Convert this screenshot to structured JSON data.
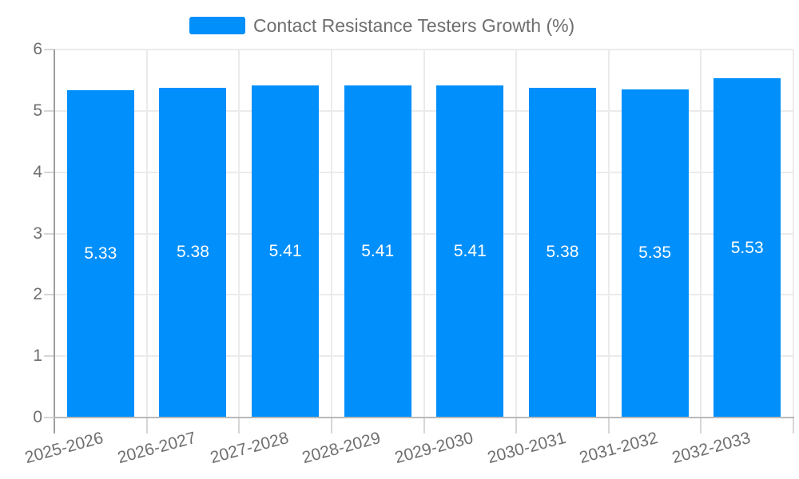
{
  "chart_data": {
    "type": "bar",
    "title": "Contact Resistance Testers Growth (%)",
    "categories": [
      "2025-2026",
      "2026-2027",
      "2027-2028",
      "2028-2029",
      "2029-2030",
      "2030-2031",
      "2031-2032",
      "2032-2033"
    ],
    "values": [
      5.33,
      5.38,
      5.41,
      5.41,
      5.41,
      5.38,
      5.35,
      5.53
    ],
    "value_labels": [
      "5.33",
      "5.38",
      "5.41",
      "5.41",
      "5.41",
      "5.38",
      "5.35",
      "5.53"
    ],
    "xlabel": "",
    "ylabel": "",
    "ylim": [
      0,
      6
    ],
    "yticks": [
      0,
      1,
      2,
      3,
      4,
      5,
      6
    ],
    "grid": true,
    "legend_position": "top",
    "x_label_rotation_deg": -15,
    "value_label_position": "center"
  },
  "colors": {
    "bar": "#008FFB",
    "value_label": "#FFFFFF",
    "axis_label": "#6F6F6F",
    "legend_label": "#6E6E6E",
    "gridline": "#EBEBEB",
    "tick": "#D6D6D6",
    "y_axis_line": "#9E9E9E",
    "baseline": "#B9B9B9",
    "background": "#FFFFFF"
  }
}
